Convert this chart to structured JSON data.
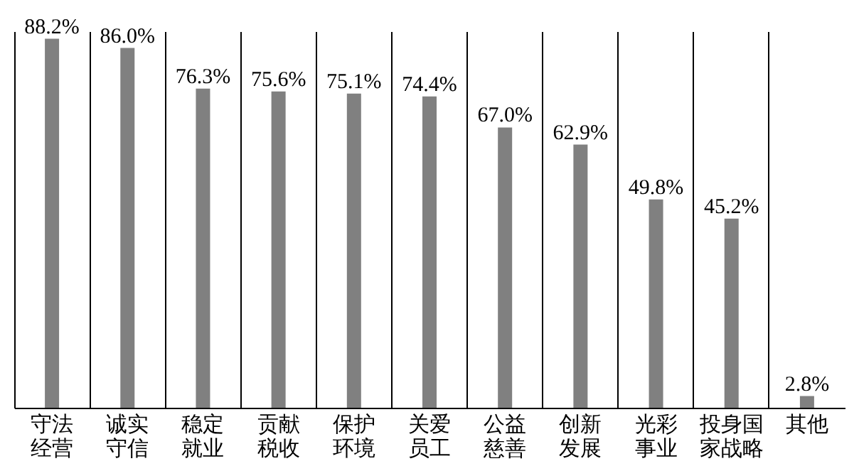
{
  "chart_data": {
    "type": "bar",
    "categories": [
      "守法经营",
      "诚实守信",
      "稳定就业",
      "贡献税收",
      "保护环境",
      "关爱员工",
      "公益慈善",
      "创新发展",
      "光彩事业",
      "投身国家战略",
      "其他"
    ],
    "values": [
      88.2,
      86.0,
      76.3,
      75.6,
      75.1,
      74.4,
      67.0,
      62.9,
      49.8,
      45.2,
      2.8
    ],
    "value_labels": [
      "88.2%",
      "86.0%",
      "76.3%",
      "75.6%",
      "75.1%",
      "74.4%",
      "67.0%",
      "62.9%",
      "49.8%",
      "45.2%",
      "2.8%"
    ],
    "color": "#808080",
    "grid": "x"
  }
}
